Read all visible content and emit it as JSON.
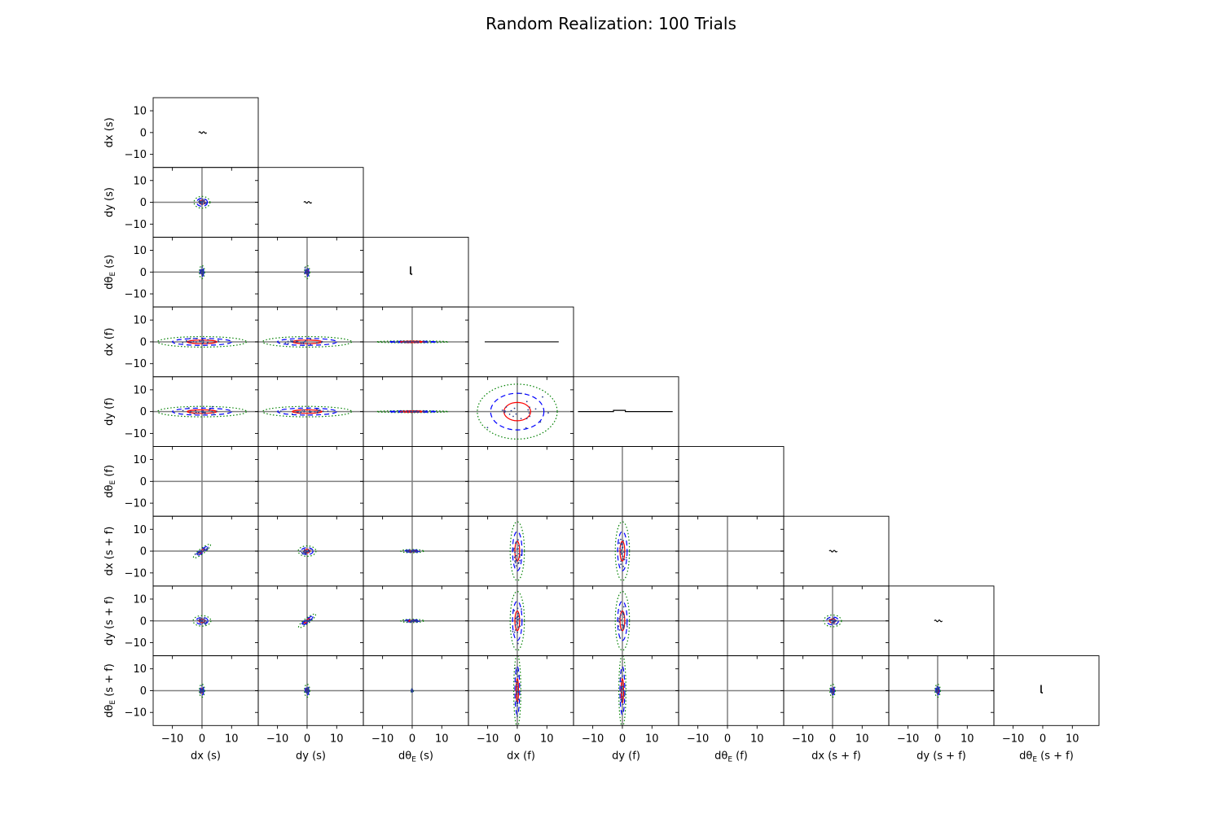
{
  "chart_data": {
    "type": "corner",
    "title": "Random Realization: 100 Trials",
    "variables": [
      "dx (s)",
      "dy (s)",
      "dθE (s)",
      "dx (f)",
      "dy (f)",
      "dθE (f)",
      "dx (s + f)",
      "dy (s + f)",
      "dθE (s + f)"
    ],
    "axis_labels": {
      "x": [
        "dx (s)",
        "dy (s)",
        "dθE (s)",
        "dx (f)",
        "dy (f)",
        "dθE (f)",
        "dx (s + f)",
        "dy (s + f)",
        "dθE (s + f)"
      ],
      "y": [
        "dx (s)",
        "dy (s)",
        "dθE (s)",
        "dx (f)",
        "dy (f)",
        "dθE (f)",
        "dx (s + f)",
        "dy (s + f)",
        "dθE (s + f)"
      ]
    },
    "x_ticks": [
      -10,
      0,
      10
    ],
    "y_ticks": [
      10,
      0,
      -10
    ],
    "xlim": [
      -16.5,
      19
    ],
    "ylim": [
      -16,
      16
    ],
    "ellipse_colors": [
      "#ff0000",
      "#0000ff",
      "#008000"
    ],
    "ellipse_styles": [
      "solid",
      "dashed",
      "dotted"
    ],
    "reference_line_color": "#808080",
    "diagonal_histograms": [
      {
        "type": "tilde",
        "x": 0,
        "y": 0
      },
      {
        "type": "tilde",
        "x": 0,
        "y": 0
      },
      {
        "type": "hook",
        "x": 0,
        "y": 0
      },
      {
        "type": "flat",
        "x1": -11,
        "x2": 14,
        "y": 0
      },
      {
        "type": "flat_bump",
        "x1": -15,
        "x2": 17,
        "y": 0,
        "bump": [
          -3,
          1
        ]
      },
      {
        "type": "none"
      },
      {
        "type": "tilde",
        "x": 0,
        "y": 0
      },
      {
        "type": "tilde",
        "x": 0,
        "y": 0
      },
      {
        "type": "hook",
        "x": 0,
        "y": 0
      }
    ],
    "covariance_ellipses_1sigma": [
      {
        "row": 1,
        "col": 0,
        "rx": 0.9,
        "ry": 0.9,
        "tilt": 0
      },
      {
        "row": 2,
        "col": 0,
        "rx": 0.3,
        "ry": 1.0,
        "tilt": 0
      },
      {
        "row": 2,
        "col": 1,
        "rx": 0.3,
        "ry": 1.0,
        "tilt": 0
      },
      {
        "row": 3,
        "col": 0,
        "rx": 5,
        "ry": 0.8,
        "tilt": 0
      },
      {
        "row": 3,
        "col": 1,
        "rx": 5,
        "ry": 0.8,
        "tilt": 0
      },
      {
        "row": 3,
        "col": 2,
        "rx": 4,
        "ry": 0.15,
        "tilt": 0
      },
      {
        "row": 4,
        "col": 0,
        "rx": 5,
        "ry": 0.8,
        "tilt": 0
      },
      {
        "row": 4,
        "col": 1,
        "rx": 5,
        "ry": 0.8,
        "tilt": 0
      },
      {
        "row": 4,
        "col": 2,
        "rx": 4,
        "ry": 0.15,
        "tilt": 0
      },
      {
        "row": 4,
        "col": 3,
        "rx": 4.5,
        "ry": 4.2,
        "tilt": 0
      },
      {
        "row": 6,
        "col": 0,
        "rx": 1.2,
        "ry": 0.4,
        "tilt": 38
      },
      {
        "row": 6,
        "col": 1,
        "rx": 1.0,
        "ry": 0.8,
        "tilt": 0
      },
      {
        "row": 6,
        "col": 2,
        "rx": 1.3,
        "ry": 0.25,
        "tilt": 0
      },
      {
        "row": 6,
        "col": 3,
        "rx": 0.8,
        "ry": 4.5,
        "tilt": 0
      },
      {
        "row": 6,
        "col": 4,
        "rx": 0.8,
        "ry": 4.5,
        "tilt": 0
      },
      {
        "row": 6,
        "col": 6,
        "rx": 1.0,
        "ry": 0.9,
        "tilt": 0
      },
      {
        "row": 7,
        "col": 0,
        "rx": 1.0,
        "ry": 0.8,
        "tilt": 0
      },
      {
        "row": 7,
        "col": 1,
        "rx": 1.2,
        "ry": 0.4,
        "tilt": 38
      },
      {
        "row": 7,
        "col": 2,
        "rx": 1.3,
        "ry": 0.25,
        "tilt": 0
      },
      {
        "row": 7,
        "col": 3,
        "rx": 0.8,
        "ry": 4.5,
        "tilt": 0
      },
      {
        "row": 7,
        "col": 4,
        "rx": 0.8,
        "ry": 4.5,
        "tilt": 0
      },
      {
        "row": 7,
        "col": 6,
        "rx": 1.0,
        "ry": 0.9,
        "tilt": 0
      },
      {
        "row": 8,
        "col": 0,
        "rx": 0.3,
        "ry": 1.0,
        "tilt": 0
      },
      {
        "row": 8,
        "col": 1,
        "rx": 0.3,
        "ry": 1.0,
        "tilt": 0
      },
      {
        "row": 8,
        "col": 2,
        "rx": 0.15,
        "ry": 0.3,
        "tilt": 0
      },
      {
        "row": 8,
        "col": 3,
        "rx": 0.4,
        "ry": 5.5,
        "tilt": 0
      },
      {
        "row": 8,
        "col": 4,
        "rx": 0.4,
        "ry": 5.5,
        "tilt": 0
      },
      {
        "row": 8,
        "col": 6,
        "rx": 0.3,
        "ry": 1.0,
        "tilt": 0
      },
      {
        "row": 8,
        "col": 7,
        "rx": 0.3,
        "ry": 1.0,
        "tilt": 0
      }
    ],
    "grid": false
  }
}
